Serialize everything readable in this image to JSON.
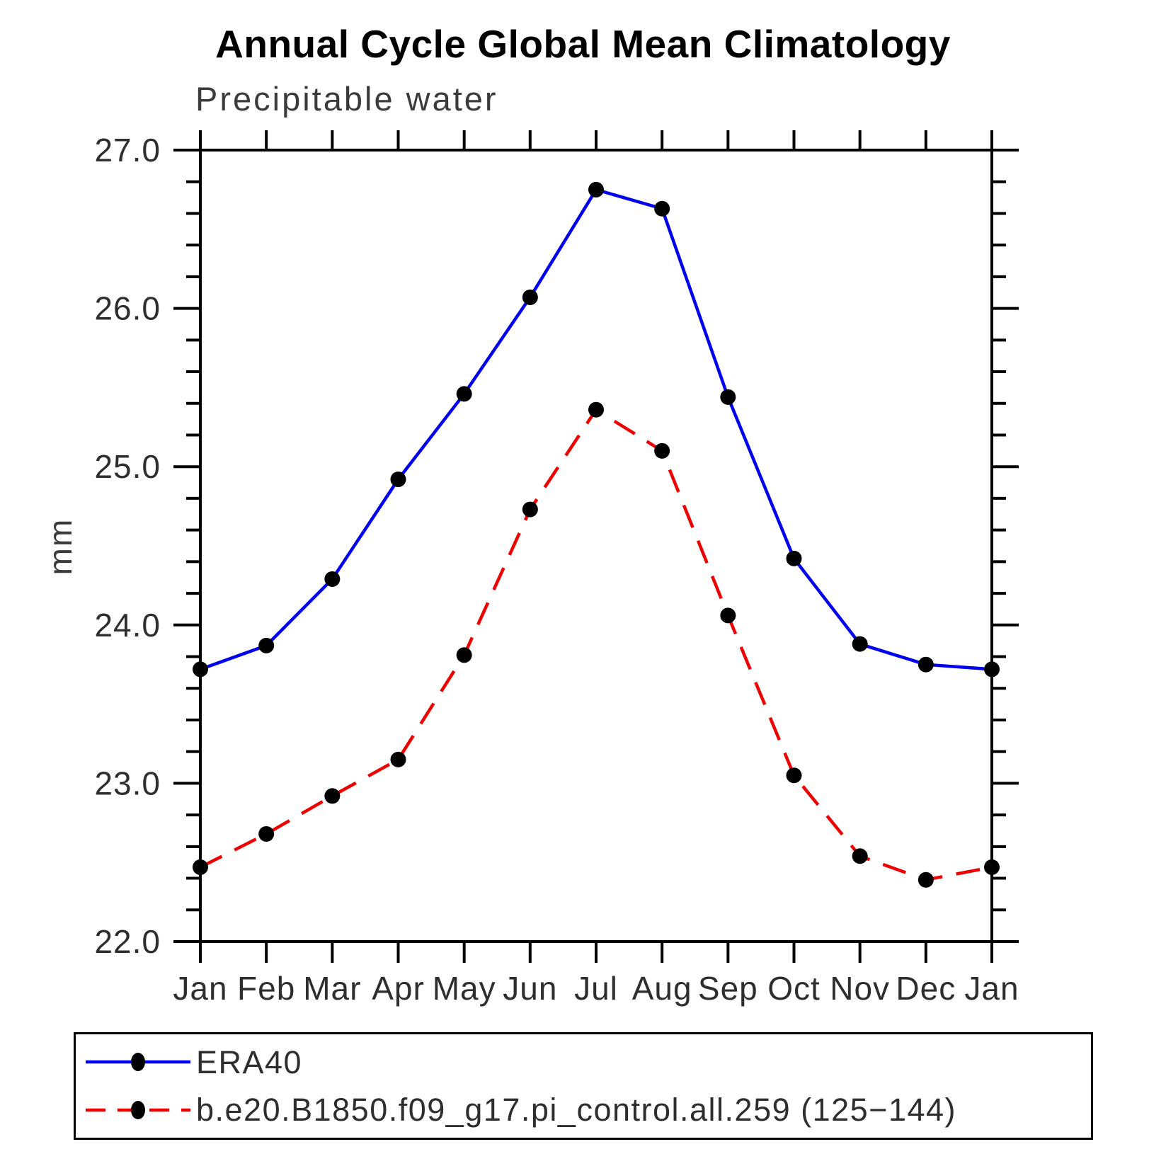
{
  "chart": {
    "title": "Annual Cycle Global Mean Climatology",
    "subtitle": "Precipitable water",
    "ylabel": "mm"
  },
  "chart_data": {
    "type": "line",
    "title": "Annual Cycle Global Mean Climatology",
    "subtitle": "Precipitable water",
    "ylabel": "mm",
    "xlabel": "",
    "grid": false,
    "legend_position": "bottom",
    "x_labels": [
      "Jan",
      "Feb",
      "Mar",
      "Apr",
      "May",
      "Jun",
      "Jul",
      "Aug",
      "Sep",
      "Oct",
      "Nov",
      "Dec",
      "Jan"
    ],
    "ylim": [
      22.0,
      27.0
    ],
    "y_major_step": 1.0,
    "y_minor_step": 0.2,
    "y_ticks": [
      22,
      23,
      24,
      25,
      26,
      27
    ],
    "y_tick_labels": [
      "22.0",
      "23.0",
      "24.0",
      "25.0",
      "26.0",
      "27.0"
    ],
    "series": [
      {
        "name": "ERA40",
        "color": "#0000ee",
        "line_style": "solid",
        "marker": "circle",
        "marker_color": "#000000",
        "values": [
          23.72,
          23.87,
          24.29,
          24.92,
          25.46,
          26.07,
          26.75,
          26.63,
          25.44,
          24.42,
          23.88,
          23.75,
          23.72
        ]
      },
      {
        "name": "b.e20.B1850.f09_g17.pi_control.all.259 (125−144)",
        "color": "#ee0000",
        "line_style": "dashed",
        "marker": "circle",
        "marker_color": "#000000",
        "values": [
          22.47,
          22.68,
          22.92,
          23.15,
          23.81,
          24.73,
          25.36,
          25.1,
          24.06,
          23.05,
          22.54,
          22.39,
          22.47
        ]
      }
    ]
  }
}
